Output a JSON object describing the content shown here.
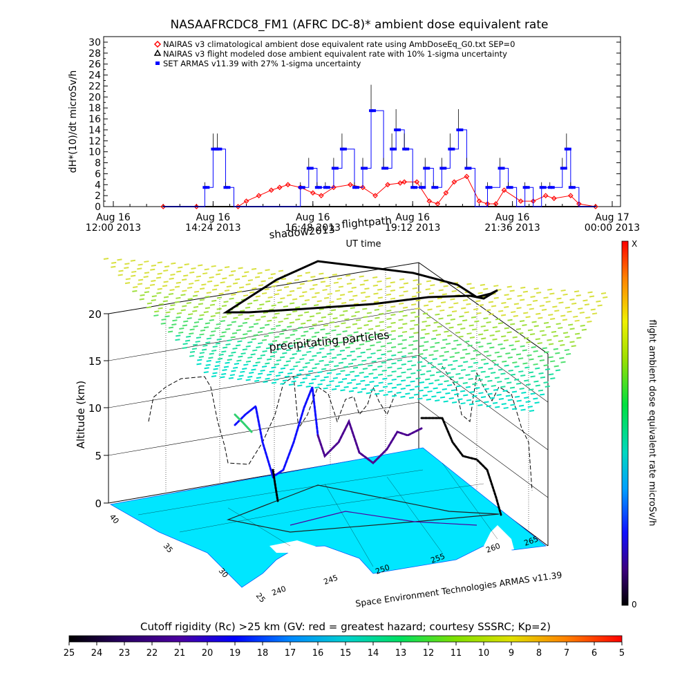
{
  "chart_data": [
    {
      "type": "line",
      "title": "NASAAFRCDC8_FM1 (AFRC DC-8)* ambient dose equivalent rate",
      "ylabel": "dH*(10)/dt microSv/h",
      "xlabel": "UT time",
      "ylim": [
        0,
        30
      ],
      "y_ticks": [
        "0",
        "2",
        "4",
        "6",
        "8",
        "10",
        "12",
        "14",
        "16",
        "18",
        "20",
        "22",
        "24",
        "26",
        "28",
        "30"
      ],
      "x_ticks": [
        {
          "date": "Aug 16",
          "time": "12:00 2013"
        },
        {
          "date": "Aug 16",
          "time": "14:24 2013"
        },
        {
          "date": "Aug 16",
          "time": "16:48 2013"
        },
        {
          "date": "Aug 16",
          "time": "19:12 2013"
        },
        {
          "date": "Aug 16",
          "time": "21:36 2013"
        },
        {
          "date": "Aug 17",
          "time": "00:00 2013"
        }
      ],
      "x_units": "hours since 2013-08-16 12:00 UT",
      "xlim": [
        0,
        12
      ],
      "legend": [
        "NAIRAS v3 climatological ambient dose equivalent rate using AmbDoseEq_G0.txt SEP=0",
        "NAIRAS v3 flight modeled dose ambient equivalent rate with 10% 1-sigma uncertainty",
        "SET ARMAS v11.39 with 27% 1-sigma uncertainty"
      ],
      "legend_position": "top-left",
      "series": [
        {
          "name": "NAIRAS v3 climatological ambient dose equivalent rate using AmbDoseEq_G0.txt SEP=0",
          "color": "#ff0000",
          "x": [
            1.2,
            2.0,
            3.0,
            3.2,
            3.5,
            3.8,
            4.0,
            4.2,
            4.5,
            4.8,
            5.0,
            5.3,
            5.7,
            6.0,
            6.3,
            6.6,
            6.9,
            7.0,
            7.3,
            7.6,
            7.8,
            8.0,
            8.2,
            8.5,
            8.8,
            9.0,
            9.2,
            9.4,
            9.8,
            10.1,
            10.4,
            10.6,
            11.0,
            11.2,
            11.6
          ],
          "y": [
            0,
            0,
            0,
            1,
            2,
            3,
            3.5,
            4,
            3.5,
            2.5,
            2,
            3.5,
            4,
            3.5,
            2,
            4,
            4.3,
            4.5,
            4.5,
            1,
            0.5,
            2.5,
            4.5,
            5.5,
            1,
            0.5,
            0.5,
            3,
            1,
            1,
            2,
            1.5,
            2,
            0.5,
            0
          ]
        },
        {
          "name": "NAIRAS v3 flight modeled dose ambient equivalent rate with 10% 1-sigma uncertainty",
          "color": "#000000",
          "x": [
            1.2,
            11.6
          ],
          "y": [
            0,
            0
          ]
        },
        {
          "name": "SET ARMAS v11.39 with 27% 1-sigma uncertainty",
          "color": "#0000ff",
          "x": [
            1.2,
            1.5,
            2.0,
            2.2,
            2.4,
            2.5,
            2.7,
            2.9,
            3.2,
            4.0,
            4.5,
            4.7,
            4.9,
            5.1,
            5.3,
            5.5,
            5.8,
            6.0,
            6.2,
            6.5,
            6.7,
            6.8,
            7.0,
            7.2,
            7.4,
            7.5,
            7.7,
            7.9,
            8.1,
            8.3,
            8.5,
            8.7,
            8.9,
            9.0,
            9.3,
            9.5,
            9.7,
            9.9,
            10.1,
            10.3,
            10.5,
            10.8,
            10.9,
            11.0,
            11.2,
            11.6
          ],
          "y": [
            0,
            0,
            0,
            3.5,
            10.5,
            10.5,
            3.5,
            0,
            0,
            0,
            3.5,
            7,
            3.5,
            3.5,
            7,
            10.5,
            3.5,
            7,
            17.5,
            7,
            10.5,
            14,
            10.5,
            3.5,
            3.5,
            7,
            3.5,
            7,
            10.5,
            14,
            7,
            0,
            0,
            3.5,
            7,
            3.5,
            0,
            3.5,
            0,
            3.5,
            3.5,
            7,
            10.5,
            3.5,
            0,
            0
          ]
        }
      ]
    },
    {
      "type": "scatter",
      "subtype": "3d flight path",
      "zlabel": "Altitude (km)",
      "zlim": [
        0,
        20
      ],
      "z_ticks": [
        "0",
        "5",
        "10",
        "15",
        "20"
      ],
      "lat_ticks": [
        "40",
        "35",
        "30",
        "25"
      ],
      "lon_ticks": [
        "240",
        "245",
        "250",
        "255",
        "260",
        "265"
      ],
      "annotations": [
        "shadow2013",
        "flightpath",
        "precipitating particles"
      ],
      "credit": "Space Environment Technologies ARMAS v11.39",
      "colorbar_label": "flight ambient dose equivalent rate microSv/h",
      "colorbar_top": "X",
      "colorbar_bottom": "0",
      "colorbar_position": "right"
    },
    {
      "type": "heatmap",
      "subtype": "colorbar",
      "title": "Cutoff rigidity (Rc) >25 km (GV: red = greatest hazard; courtesy SSSRC; Kp=2)",
      "ticks": [
        "25",
        "24",
        "23",
        "22",
        "21",
        "20",
        "19",
        "18",
        "17",
        "16",
        "15",
        "14",
        "13",
        "12",
        "11",
        "10",
        "9",
        "8",
        "7",
        "6",
        "5"
      ],
      "colors": [
        "#000000",
        "#2a0066",
        "#4b00a0",
        "#0000ff",
        "#0088ff",
        "#00d0d0",
        "#00e060",
        "#80e000",
        "#e0e000",
        "#ff8000",
        "#ff0000"
      ]
    }
  ]
}
